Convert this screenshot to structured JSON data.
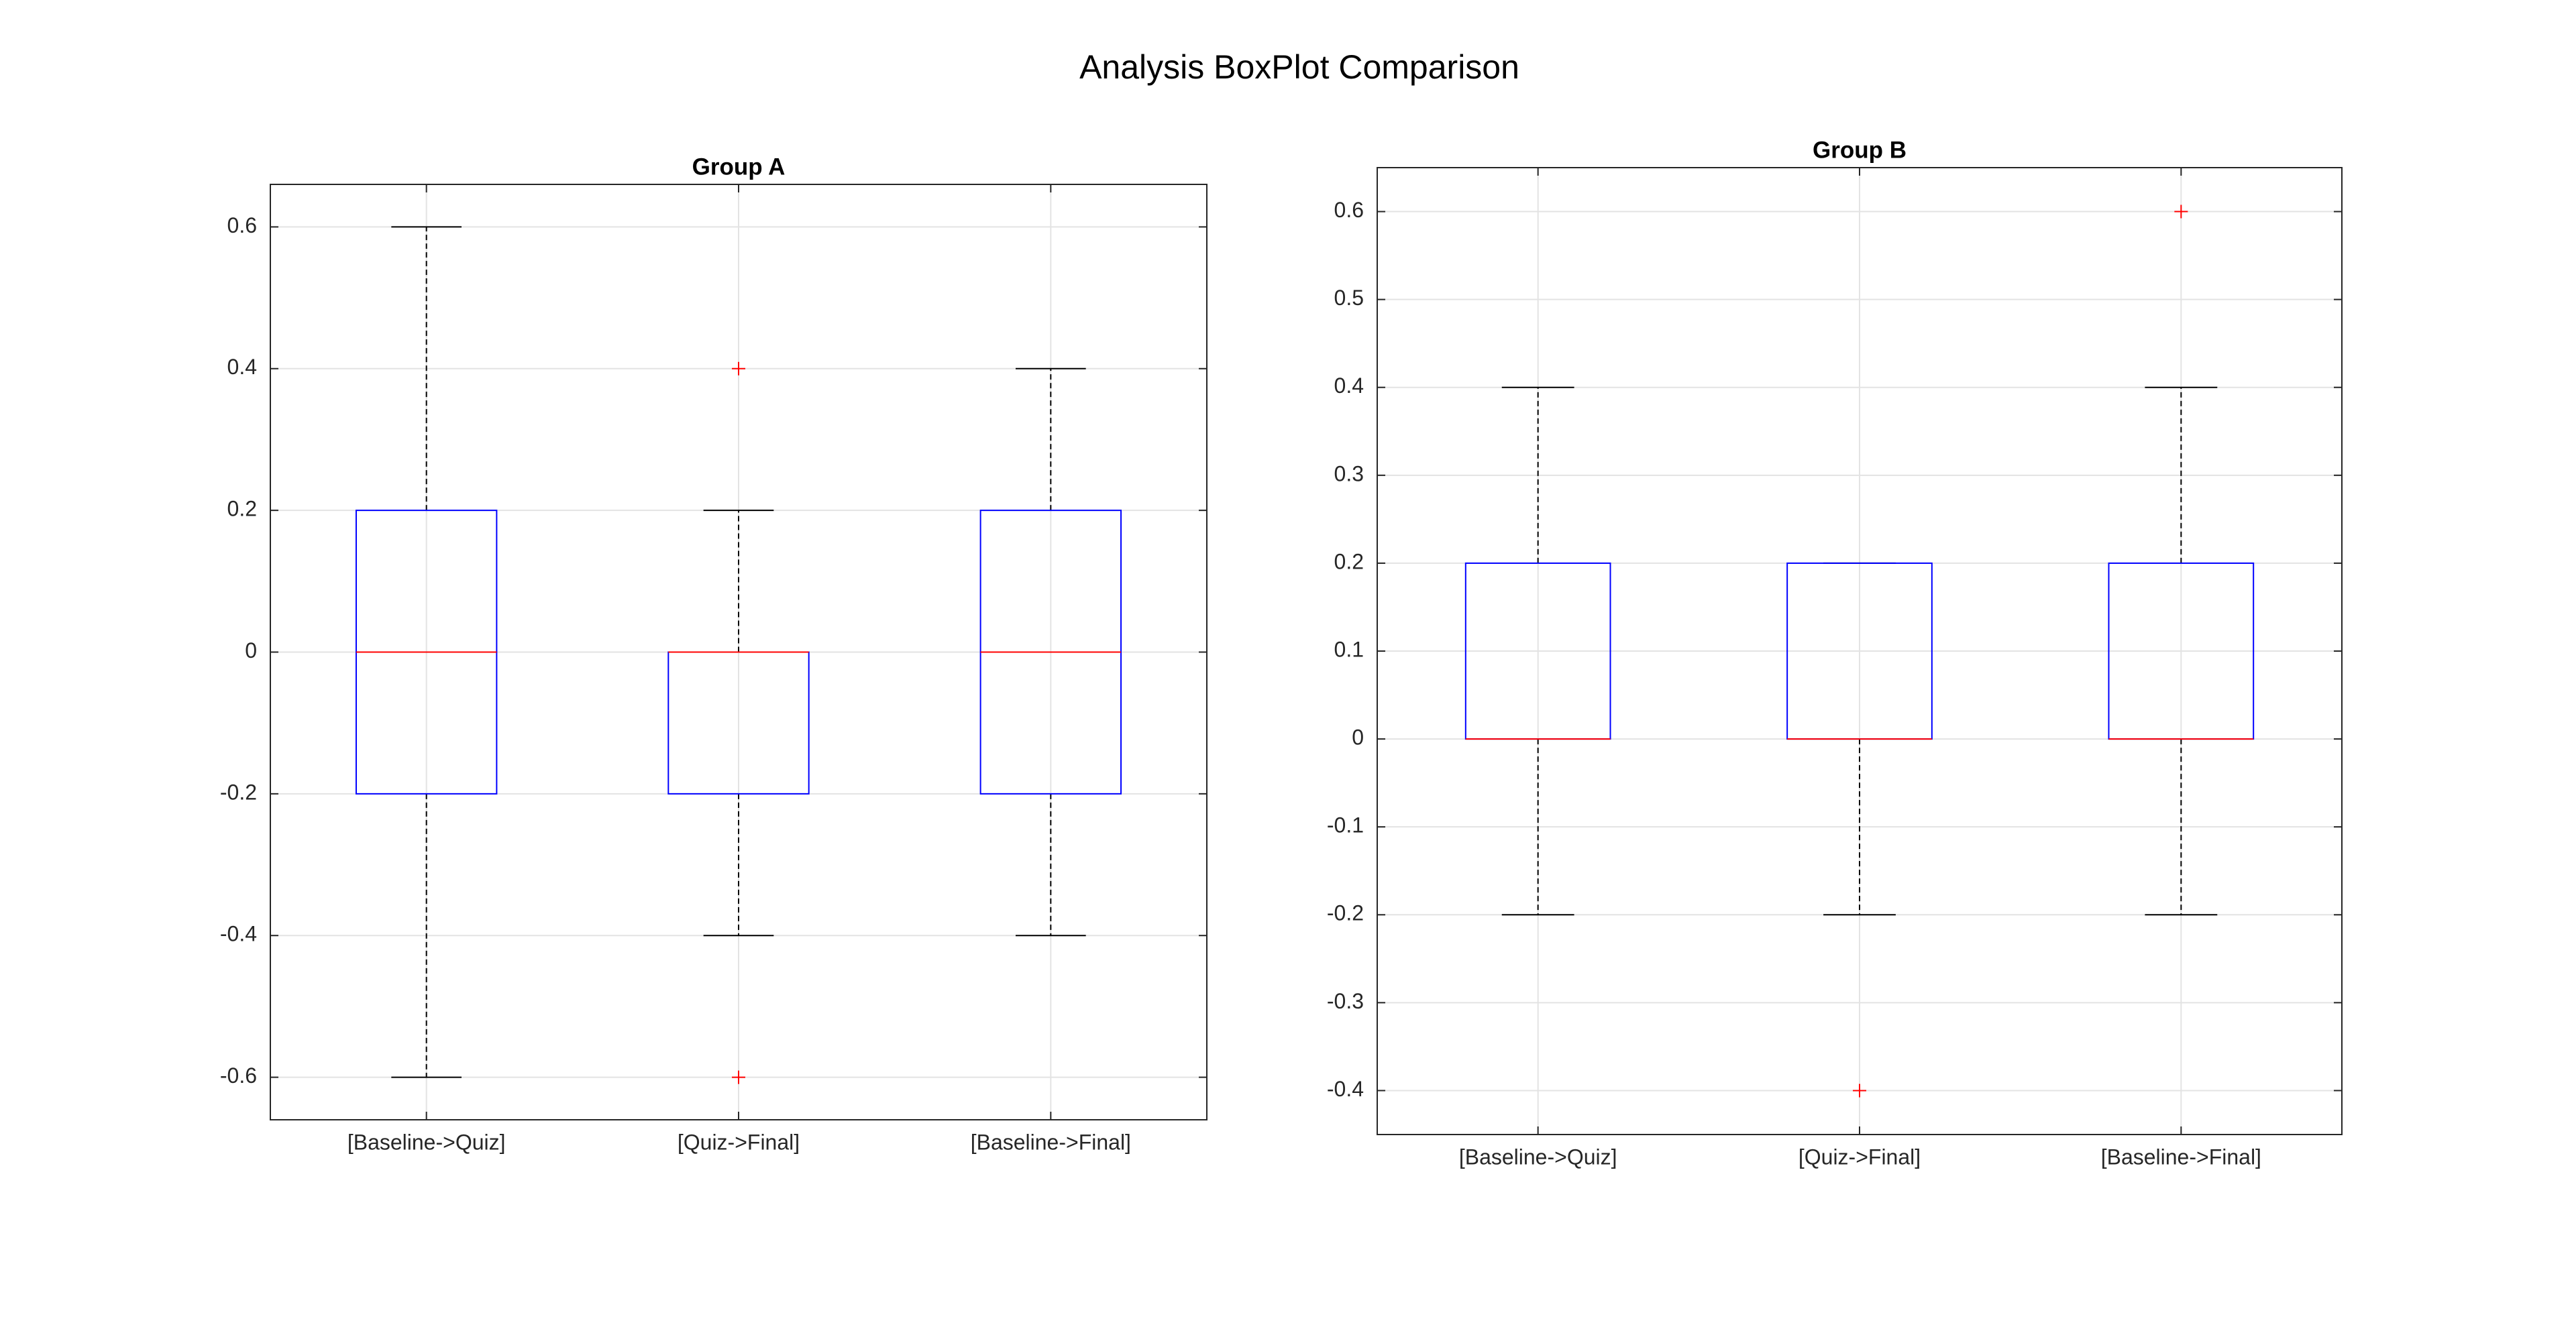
{
  "title": "Analysis BoxPlot Comparison",
  "chart_data": [
    {
      "type": "box",
      "title": "Group A",
      "categories": [
        "[Baseline->Quiz]",
        "[Quiz->Final]",
        "[Baseline->Final]"
      ],
      "boxes": [
        {
          "whisker_low": -0.6,
          "q1": -0.2,
          "median": 0,
          "q3": 0.2,
          "whisker_high": 0.6,
          "outliers": []
        },
        {
          "whisker_low": -0.4,
          "q1": -0.2,
          "median": 0,
          "q3": 0,
          "whisker_high": 0.2,
          "outliers": [
            0.4,
            -0.6
          ]
        },
        {
          "whisker_low": -0.4,
          "q1": -0.2,
          "median": 0,
          "q3": 0.2,
          "whisker_high": 0.4,
          "outliers": []
        }
      ],
      "ylim": [
        -0.66,
        0.66
      ],
      "yticks": [
        -0.6,
        -0.4,
        -0.2,
        0,
        0.2,
        0.4,
        0.6
      ],
      "grid": true,
      "box_color": "#0000ff",
      "median_color": "#ff0000",
      "whisker_color": "#000000",
      "outlier_color": "#ff0000"
    },
    {
      "type": "box",
      "title": "Group B",
      "categories": [
        "[Baseline->Quiz]",
        "[Quiz->Final]",
        "[Baseline->Final]"
      ],
      "boxes": [
        {
          "whisker_low": -0.2,
          "q1": 0,
          "median": 0,
          "q3": 0.2,
          "whisker_high": 0.4,
          "outliers": []
        },
        {
          "whisker_low": -0.2,
          "q1": 0,
          "median": 0,
          "q3": 0.2,
          "whisker_high": 0.2,
          "outliers": [
            -0.4
          ]
        },
        {
          "whisker_low": -0.2,
          "q1": 0,
          "median": 0,
          "q3": 0.2,
          "whisker_high": 0.4,
          "outliers": [
            0.6
          ]
        }
      ],
      "ylim": [
        -0.45,
        0.65
      ],
      "yticks": [
        -0.4,
        -0.3,
        -0.2,
        -0.1,
        0,
        0.1,
        0.2,
        0.3,
        0.4,
        0.5,
        0.6
      ],
      "grid": true,
      "box_color": "#0000ff",
      "median_color": "#ff0000",
      "whisker_color": "#000000",
      "outlier_color": "#ff0000"
    }
  ]
}
